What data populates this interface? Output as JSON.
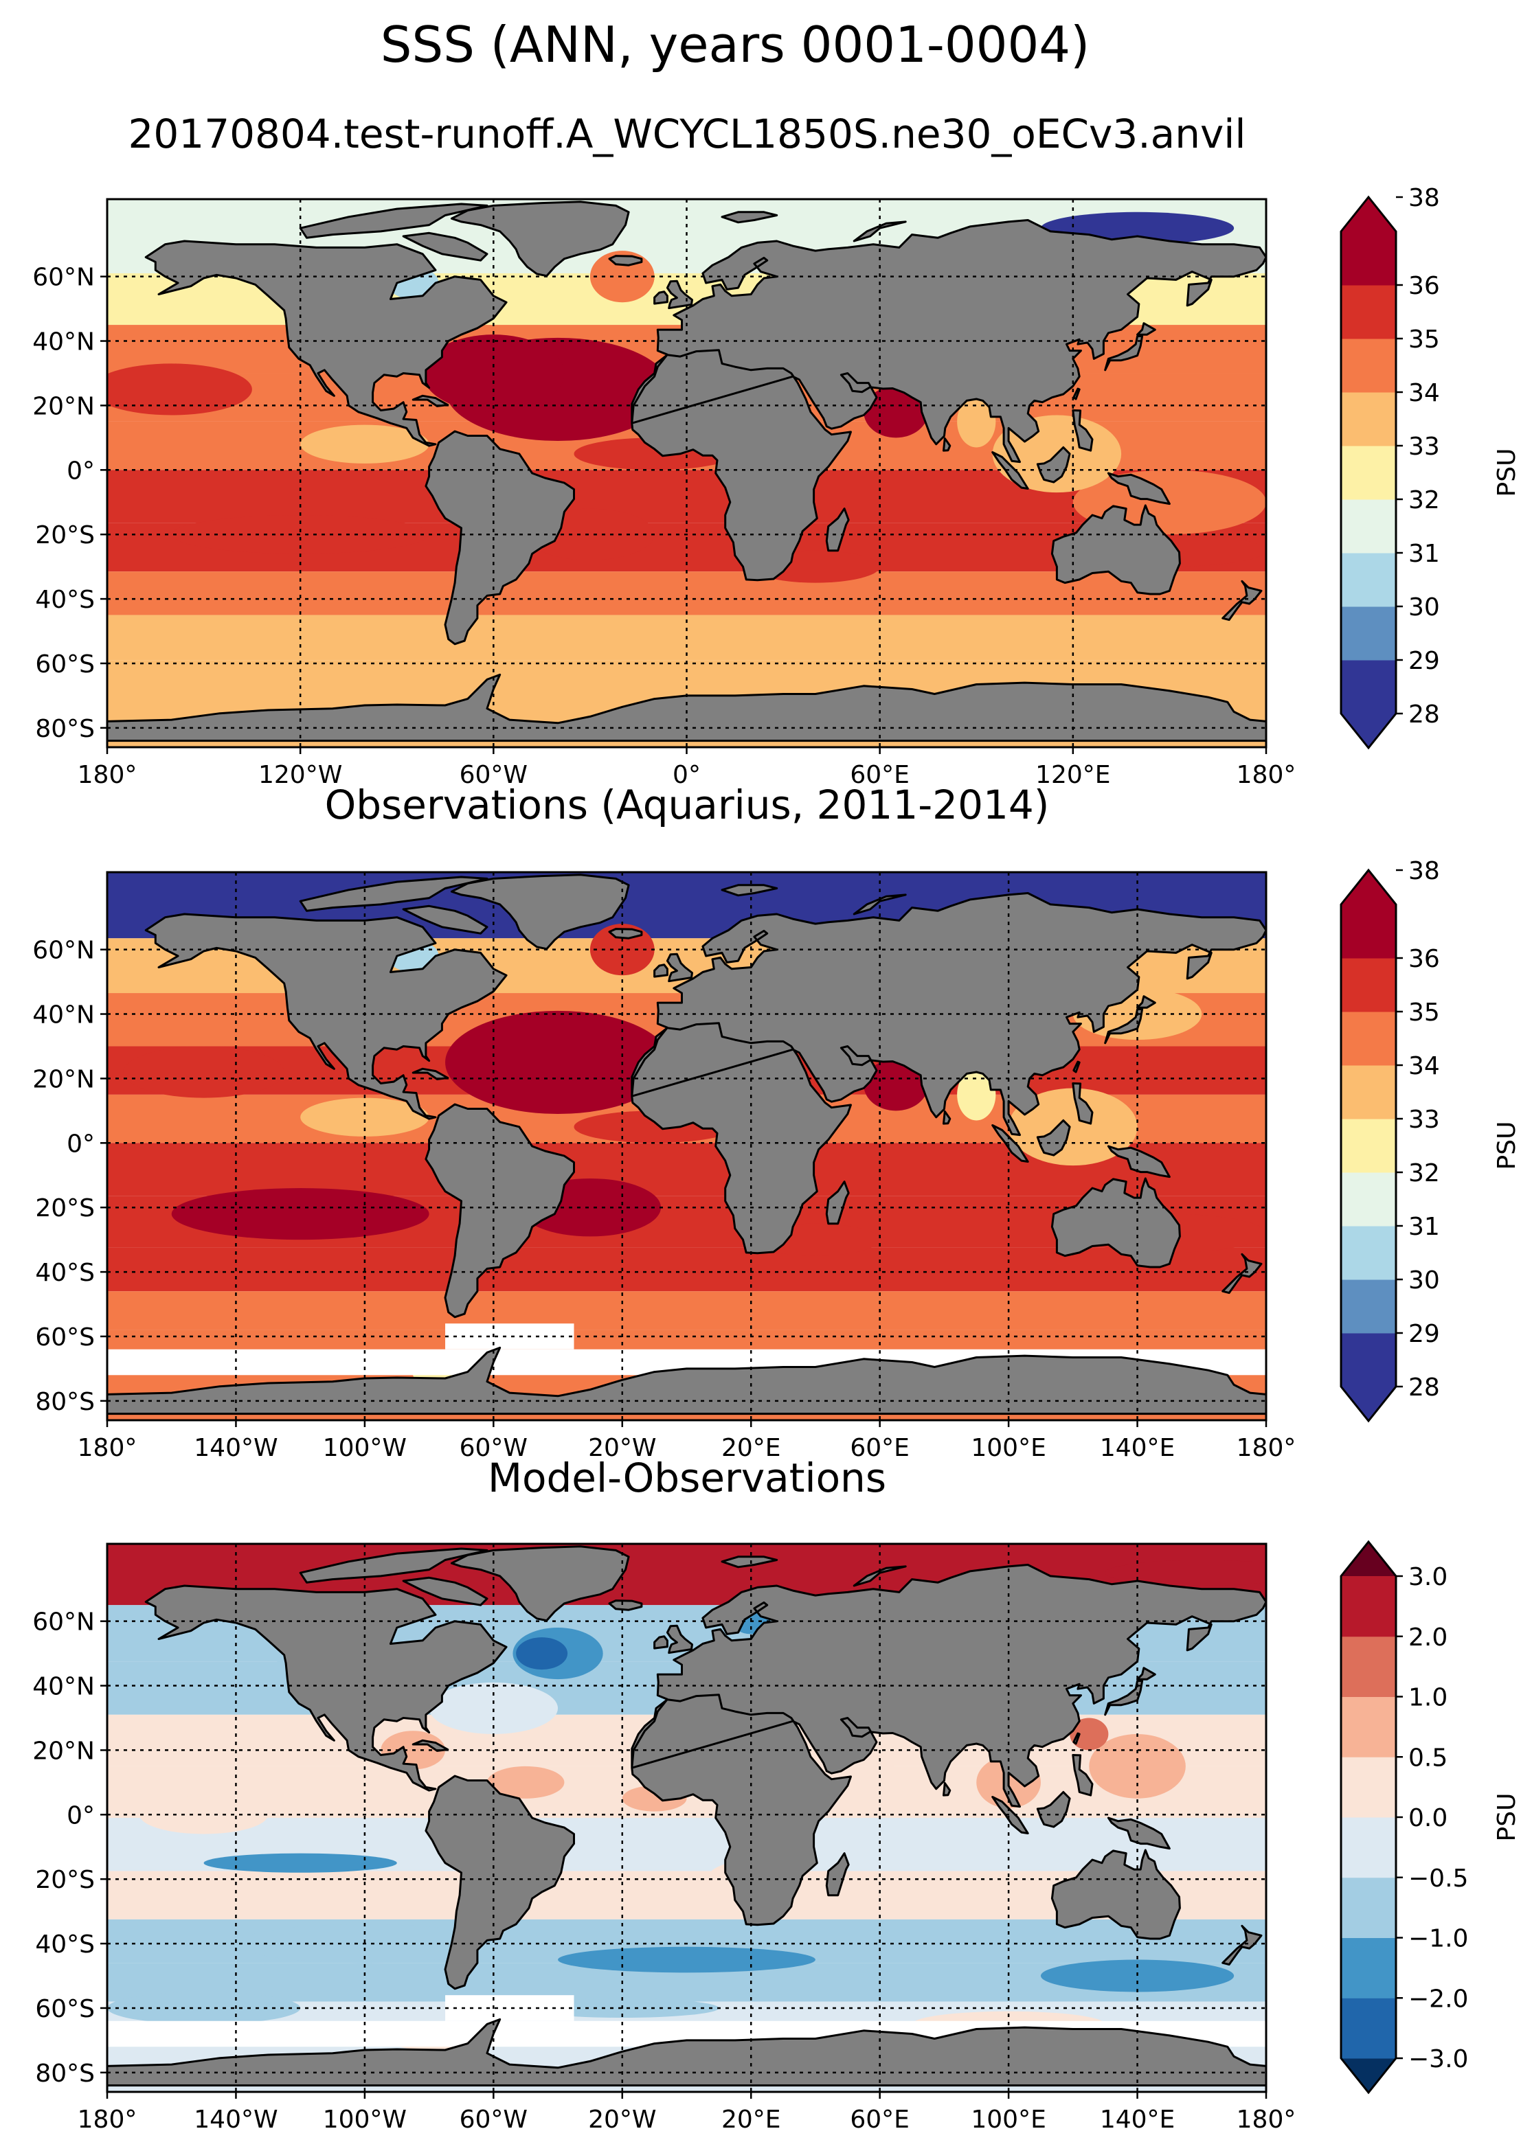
{
  "figure": {
    "title": "SSS (ANN, years 0001-0004)",
    "subtitle": "20170804.test-runoff.A_WCYCL1850S.ne30_oECv3.anvil"
  },
  "colors": {
    "land": "#808080",
    "salinity_levels": [
      "#313695",
      "#5e8fc0",
      "#acd7e7",
      "#e6f4e8",
      "#fdf1a6",
      "#fbbd70",
      "#f47a48",
      "#d73128",
      "#a50026"
    ],
    "salinity_under": "#313695",
    "salinity_over": "#a50026",
    "diff_levels": [
      "#2066ab",
      "#4295c7",
      "#a3cde3",
      "#dde9f2",
      "#fae4d7",
      "#f7b396",
      "#dd6f5a",
      "#b7192b"
    ],
    "diff_under": "#053061",
    "diff_over": "#67001f"
  },
  "panels": [
    {
      "id": "model",
      "title": "",
      "lat_ticks": [
        "60°N",
        "40°N",
        "20°N",
        "0°",
        "20°S",
        "40°S",
        "60°S",
        "80°S"
      ],
      "lon_ticks": [
        "180°",
        "120°W",
        "60°W",
        "0°",
        "60°E",
        "120°E",
        "180°"
      ],
      "colorbar": {
        "label": "PSU",
        "tick_labels": [
          "28",
          "29",
          "30",
          "31",
          "32",
          "33",
          "34",
          "35",
          "36",
          "38"
        ],
        "palette": "salinity"
      },
      "zones": [
        {
          "lat": 70,
          "value": 31.5
        },
        {
          "lat": 52,
          "value": 32.5
        },
        {
          "lat": 38,
          "value": 34.5
        },
        {
          "lat": 22,
          "value": 34.5
        },
        {
          "lat": 8,
          "value": 34.5
        },
        {
          "lat": -8,
          "value": 35.5
        },
        {
          "lat": -25,
          "value": 35.5
        },
        {
          "lat": -38,
          "value": 34.5
        },
        {
          "lat": -52,
          "value": 33.5
        },
        {
          "lat": -66,
          "value": 33.5
        }
      ]
    },
    {
      "id": "obs",
      "title": "Observations (Aquarius, 2011-2014)",
      "lat_ticks": [
        "60°N",
        "40°N",
        "20°N",
        "0°",
        "20°S",
        "40°S",
        "60°S",
        "80°S"
      ],
      "lon_ticks": [
        "180°",
        "140°W",
        "100°W",
        "60°W",
        "20°W",
        "20°E",
        "60°E",
        "100°E",
        "140°E",
        "180°"
      ],
      "colorbar": {
        "label": "PSU",
        "tick_labels": [
          "28",
          "29",
          "30",
          "31",
          "32",
          "33",
          "34",
          "35",
          "36",
          "38"
        ],
        "palette": "salinity"
      },
      "zones": [
        {
          "lat": 72,
          "value": 28.5
        },
        {
          "lat": 55,
          "value": 33.5
        },
        {
          "lat": 38,
          "value": 34.5
        },
        {
          "lat": 22,
          "value": 35.5
        },
        {
          "lat": 8,
          "value": 34.5
        },
        {
          "lat": -8,
          "value": 35.5
        },
        {
          "lat": -25,
          "value": 35.5
        },
        {
          "lat": -40,
          "value": 35.5
        },
        {
          "lat": -52,
          "value": 34.5
        },
        {
          "lat": -64,
          "value": 34.5
        }
      ]
    },
    {
      "id": "diff",
      "title": "Model-Observations",
      "lat_ticks": [
        "60°N",
        "40°N",
        "20°N",
        "0°",
        "20°S",
        "40°S",
        "60°S",
        "80°S"
      ],
      "lon_ticks": [
        "180°",
        "140°W",
        "100°W",
        "60°W",
        "20°W",
        "20°E",
        "60°E",
        "100°E",
        "140°E",
        "180°"
      ],
      "colorbar": {
        "label": "PSU",
        "tick_labels": [
          "−3.0",
          "−2.0",
          "−1.0",
          "−0.5",
          "0.0",
          "0.5",
          "1.0",
          "2.0",
          "3.0"
        ],
        "palette": "diff"
      },
      "zones": [
        {
          "lat": 75,
          "value": 2.5
        },
        {
          "lat": 55,
          "value": -0.7
        },
        {
          "lat": 40,
          "value": -0.7
        },
        {
          "lat": 22,
          "value": 0.2
        },
        {
          "lat": 8,
          "value": 0.2
        },
        {
          "lat": -10,
          "value": -0.2
        },
        {
          "lat": -25,
          "value": 0.2
        },
        {
          "lat": -40,
          "value": -0.7
        },
        {
          "lat": -52,
          "value": -0.7
        },
        {
          "lat": -64,
          "value": -0.2
        }
      ]
    }
  ]
}
